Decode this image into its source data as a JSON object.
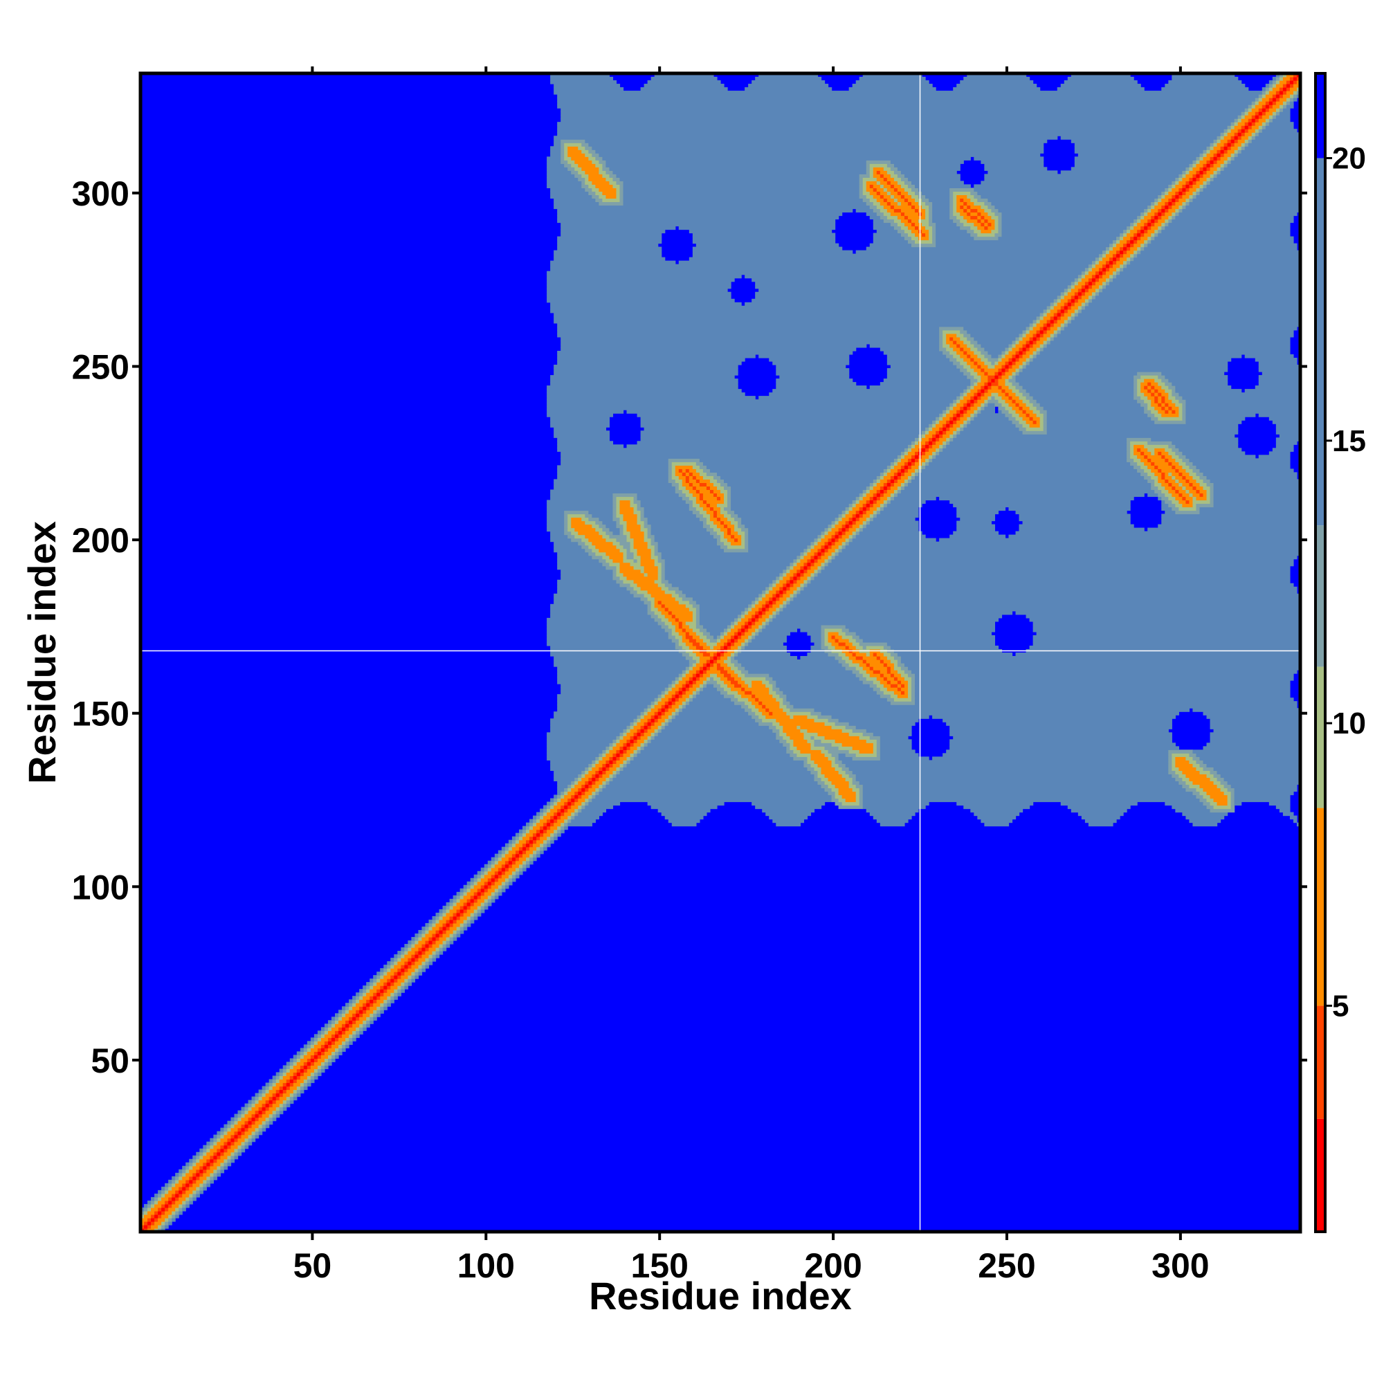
{
  "chart_data": {
    "type": "heatmap",
    "title": "",
    "xlabel": "Residue index",
    "ylabel": "Residue index",
    "xlim": [
      1,
      334
    ],
    "ylim": [
      1,
      334
    ],
    "x_ticks": [
      50,
      100,
      150,
      200,
      250,
      300
    ],
    "y_ticks": [
      50,
      100,
      150,
      200,
      250,
      300
    ],
    "marker_lines": {
      "x": 225,
      "y": 168
    },
    "colorbar": {
      "range": [
        1,
        21.5
      ],
      "ticks": [
        5,
        10,
        15,
        20
      ],
      "colors": {
        "contact": "#ff0000",
        "close": "#ff8c00",
        "mid": "#a8bf84",
        "far": "#5a86b8",
        "background": "#0000ff"
      }
    },
    "background_value": 21.5,
    "regions": [
      {
        "name": "diagonal",
        "value_on_diagonal": 1,
        "band_width_residues": 6
      },
      {
        "name": "domain-block",
        "residue_range": [
          118,
          334
        ],
        "typical_value": 16
      }
    ],
    "contact_lines": [
      {
        "from": [
          150,
          182
        ],
        "to": [
          172,
          158
        ],
        "value": 4
      },
      {
        "from": [
          156,
          220
        ],
        "to": [
          172,
          200
        ],
        "value": 4
      },
      {
        "from": [
          178,
          158
        ],
        "to": [
          192,
          140
        ],
        "value": 6
      },
      {
        "from": [
          213,
          306
        ],
        "to": [
          225,
          294
        ],
        "value": 4
      },
      {
        "from": [
          237,
          298
        ],
        "to": [
          245,
          291
        ],
        "value": 4
      },
      {
        "from": [
          234,
          258
        ],
        "to": [
          255,
          237
        ],
        "value": 4
      },
      {
        "from": [
          290,
          244
        ],
        "to": [
          296,
          237
        ],
        "value": 4
      },
      {
        "from": [
          288,
          226
        ],
        "to": [
          302,
          211
        ],
        "value": 4
      },
      {
        "from": [
          212,
          167
        ],
        "to": [
          220,
          158
        ],
        "value": 4
      },
      {
        "from": [
          140,
          210
        ],
        "to": [
          148,
          190
        ],
        "value": 5
      },
      {
        "from": [
          125,
          312
        ],
        "to": [
          136,
          300
        ],
        "value": 6
      },
      {
        "from": [
          195,
          138
        ],
        "to": [
          205,
          126
        ],
        "value": 6
      }
    ],
    "empty_spots": [
      {
        "x": 174,
        "y": 272
      },
      {
        "x": 178,
        "y": 247
      },
      {
        "x": 140,
        "y": 232
      },
      {
        "x": 206,
        "y": 289
      },
      {
        "x": 210,
        "y": 250
      },
      {
        "x": 230,
        "y": 206
      },
      {
        "x": 250,
        "y": 205
      },
      {
        "x": 290,
        "y": 208
      },
      {
        "x": 252,
        "y": 173
      },
      {
        "x": 228,
        "y": 143
      },
      {
        "x": 240,
        "y": 306
      },
      {
        "x": 265,
        "y": 311
      },
      {
        "x": 318,
        "y": 248
      },
      {
        "x": 322,
        "y": 230
      },
      {
        "x": 190,
        "y": 170
      },
      {
        "x": 155,
        "y": 285
      },
      {
        "x": 247,
        "y": 242
      },
      {
        "x": 303,
        "y": 145
      }
    ]
  }
}
